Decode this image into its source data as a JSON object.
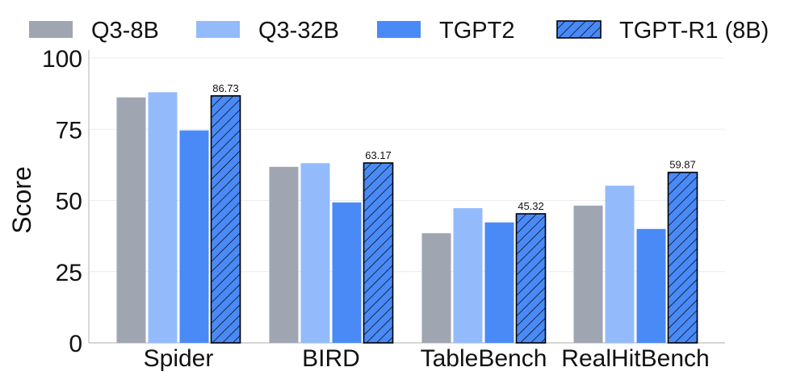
{
  "colors": {
    "q3_8b": "#9fa6b2",
    "q3_32b": "#93bbfc",
    "tgpt2": "#4a8af6",
    "tgpt_r1": "#4a8af6",
    "hatch_stroke": "#000000",
    "grid": "#ececec",
    "axis": "#bfbfbf"
  },
  "chart_data": {
    "type": "bar",
    "title": "",
    "xlabel": "",
    "ylabel": "Score",
    "ylim": [
      0,
      100
    ],
    "yticks": [
      0,
      25,
      50,
      75,
      100
    ],
    "grid": true,
    "legend_position": "top",
    "categories": [
      "Spider",
      "BIRD",
      "TableBench",
      "RealHitBench"
    ],
    "series": [
      {
        "name": "Q3-8B",
        "key": "q3_8b",
        "pattern": "solid",
        "values": [
          86.2,
          61.8,
          38.5,
          48.2
        ]
      },
      {
        "name": "Q3-32B",
        "key": "q3_32b",
        "pattern": "solid",
        "values": [
          88.0,
          63.1,
          47.3,
          55.2
        ]
      },
      {
        "name": "TGPT2",
        "key": "tgpt2",
        "pattern": "solid",
        "values": [
          74.6,
          49.3,
          42.3,
          40.0
        ]
      },
      {
        "name": "TGPT-R1 (8B)",
        "key": "tgpt_r1",
        "pattern": "hatch",
        "values": [
          86.73,
          63.17,
          45.32,
          59.87
        ],
        "data_labels": [
          "86.73",
          "63.17",
          "45.32",
          "59.87"
        ]
      }
    ]
  }
}
